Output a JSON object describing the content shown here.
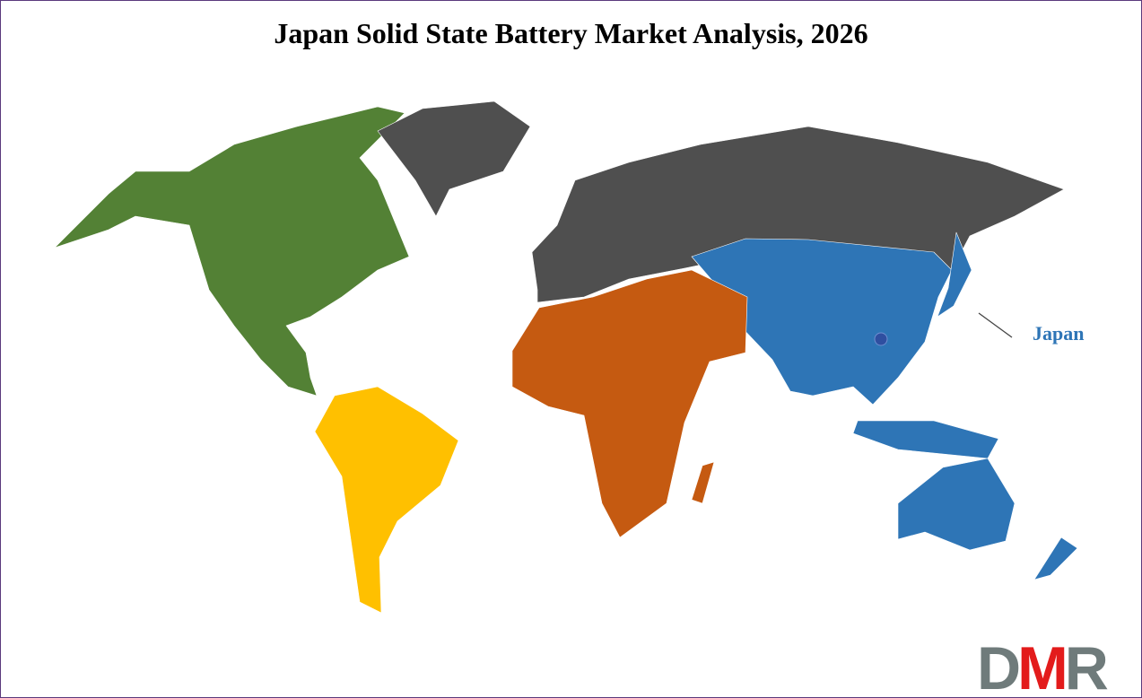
{
  "title": "Japan Solid State Battery Market Analysis, 2026",
  "highlight_label": "Japan",
  "logo": {
    "text": "DMR",
    "letters": [
      "D",
      "M",
      "R"
    ]
  },
  "colors": {
    "north_america": "#538135",
    "south_america": "#ffc000",
    "europe_russia_greenland": "#4f4f4f",
    "africa_middle_east": "#c55a11",
    "asia_pacific": "#2e75b6",
    "logo_gray": "#6f7b7b",
    "logo_red": "#e31b1b",
    "border": "#5b3a7d"
  }
}
